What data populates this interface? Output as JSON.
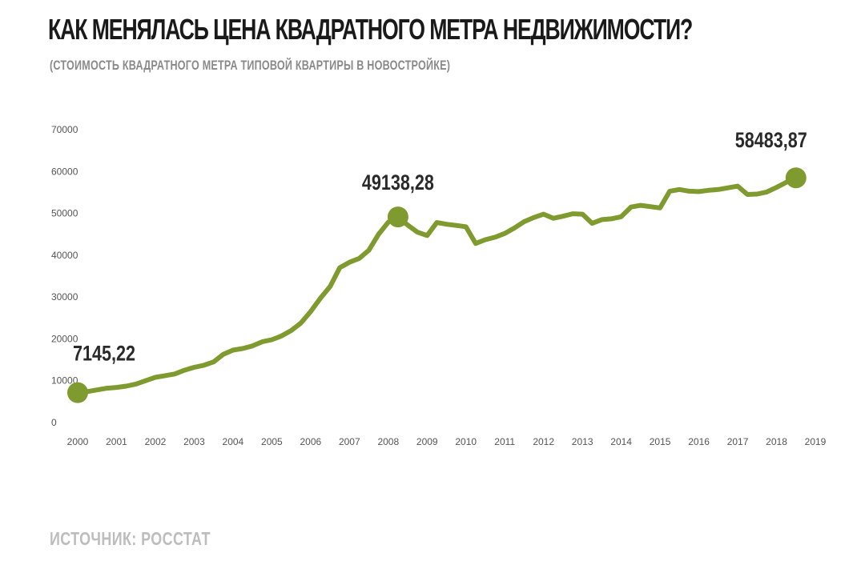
{
  "header": {
    "title": "КАК МЕНЯЛАСЬ ЦЕНА КВАДРАТНОГО МЕТРА НЕДВИЖИМОСТИ?",
    "subtitle": "(СТОИМОСТЬ КВАДРАТНОГО МЕТРА ТИПОВОЙ КВАРТИРЫ В НОВОСТРОЙКЕ)"
  },
  "footer": {
    "source": "ИСТОЧНИК: РОССТАТ"
  },
  "colors": {
    "line": "#7f9a2e",
    "marker": "#7f9a2e"
  },
  "chart_data": {
    "type": "line",
    "title": "КАК МЕНЯЛАСЬ ЦЕНА КВАДРАТНОГО МЕТРА НЕДВИЖИМОСТИ?",
    "subtitle": "(СТОИМОСТЬ КВАДРАТНОГО МЕТРА ТИПОВОЙ КВАРТИРЫ В НОВОСТРОЙКЕ)",
    "xlabel": "",
    "ylabel": "",
    "xlim": [
      2000,
      2019
    ],
    "ylim": [
      0,
      70000
    ],
    "y_ticks": [
      {
        "value": 0,
        "label": "0"
      },
      {
        "value": 10000,
        "label": "10000"
      },
      {
        "value": 20000,
        "label": "20000"
      },
      {
        "value": 30000,
        "label": "30000"
      },
      {
        "value": 40000,
        "label": "40000"
      },
      {
        "value": 50000,
        "label": "50000"
      },
      {
        "value": 60000,
        "label": "60000"
      },
      {
        "value": 70000,
        "label": "70000"
      }
    ],
    "x_ticks": [
      {
        "value": 2000,
        "label": "2000"
      },
      {
        "value": 2001,
        "label": "2001"
      },
      {
        "value": 2002,
        "label": "2002"
      },
      {
        "value": 2003,
        "label": "2003"
      },
      {
        "value": 2004,
        "label": "2004"
      },
      {
        "value": 2005,
        "label": "2005"
      },
      {
        "value": 2006,
        "label": "2006"
      },
      {
        "value": 2007,
        "label": "2007"
      },
      {
        "value": 2008,
        "label": "2008"
      },
      {
        "value": 2009,
        "label": "2009"
      },
      {
        "value": 2010,
        "label": "2010"
      },
      {
        "value": 2011,
        "label": "2011"
      },
      {
        "value": 2012,
        "label": "2012"
      },
      {
        "value": 2013,
        "label": "2013"
      },
      {
        "value": 2014,
        "label": "2014"
      },
      {
        "value": 2015,
        "label": "2015"
      },
      {
        "value": 2016,
        "label": "2016"
      },
      {
        "value": 2017,
        "label": "2017"
      },
      {
        "value": 2018,
        "label": "2018"
      },
      {
        "value": 2019,
        "label": "2019"
      }
    ],
    "grid": false,
    "series": [
      {
        "points": [
          [
            2000.0,
            7145
          ],
          [
            2000.25,
            7400
          ],
          [
            2000.5,
            7800
          ],
          [
            2000.75,
            8200
          ],
          [
            2001.0,
            8400
          ],
          [
            2001.25,
            8700
          ],
          [
            2001.5,
            9200
          ],
          [
            2001.75,
            10000
          ],
          [
            2002.0,
            10800
          ],
          [
            2002.25,
            11200
          ],
          [
            2002.5,
            11600
          ],
          [
            2002.75,
            12500
          ],
          [
            2003.0,
            13200
          ],
          [
            2003.25,
            13700
          ],
          [
            2003.5,
            14500
          ],
          [
            2003.75,
            16300
          ],
          [
            2004.0,
            17300
          ],
          [
            2004.25,
            17700
          ],
          [
            2004.5,
            18300
          ],
          [
            2004.75,
            19300
          ],
          [
            2005.0,
            19800
          ],
          [
            2005.25,
            20700
          ],
          [
            2005.5,
            22000
          ],
          [
            2005.75,
            23800
          ],
          [
            2006.0,
            26500
          ],
          [
            2006.25,
            29700
          ],
          [
            2006.5,
            32500
          ],
          [
            2006.75,
            37000
          ],
          [
            2007.0,
            38300
          ],
          [
            2007.25,
            39200
          ],
          [
            2007.5,
            41200
          ],
          [
            2007.75,
            45000
          ],
          [
            2008.0,
            47900
          ],
          [
            2008.25,
            49138
          ],
          [
            2008.5,
            47200
          ],
          [
            2008.75,
            45500
          ],
          [
            2009.0,
            44700
          ],
          [
            2009.25,
            47800
          ],
          [
            2009.5,
            47400
          ],
          [
            2009.75,
            47100
          ],
          [
            2010.0,
            46800
          ],
          [
            2010.25,
            42800
          ],
          [
            2010.5,
            43700
          ],
          [
            2010.75,
            44300
          ],
          [
            2011.0,
            45200
          ],
          [
            2011.25,
            46500
          ],
          [
            2011.5,
            48000
          ],
          [
            2011.75,
            49000
          ],
          [
            2012.0,
            49800
          ],
          [
            2012.25,
            48800
          ],
          [
            2012.5,
            49300
          ],
          [
            2012.75,
            49900
          ],
          [
            2013.0,
            49800
          ],
          [
            2013.25,
            47600
          ],
          [
            2013.5,
            48500
          ],
          [
            2013.75,
            48700
          ],
          [
            2014.0,
            49200
          ],
          [
            2014.25,
            51500
          ],
          [
            2014.5,
            51900
          ],
          [
            2014.75,
            51600
          ],
          [
            2015.0,
            51300
          ],
          [
            2015.25,
            55300
          ],
          [
            2015.5,
            55700
          ],
          [
            2015.75,
            55300
          ],
          [
            2016.0,
            55200
          ],
          [
            2016.25,
            55500
          ],
          [
            2016.5,
            55700
          ],
          [
            2016.75,
            56100
          ],
          [
            2017.0,
            56500
          ],
          [
            2017.25,
            54500
          ],
          [
            2017.5,
            54600
          ],
          [
            2017.75,
            55100
          ],
          [
            2018.0,
            56200
          ],
          [
            2018.25,
            57400
          ],
          [
            2018.5,
            58484
          ]
        ]
      }
    ],
    "annotations": [
      {
        "x": 2000.0,
        "y": 7145.22,
        "label": "7145,22"
      },
      {
        "x": 2008.25,
        "y": 49138.28,
        "label": "49138,28"
      },
      {
        "x": 2018.5,
        "y": 58483.87,
        "label": "58483,87"
      }
    ]
  }
}
